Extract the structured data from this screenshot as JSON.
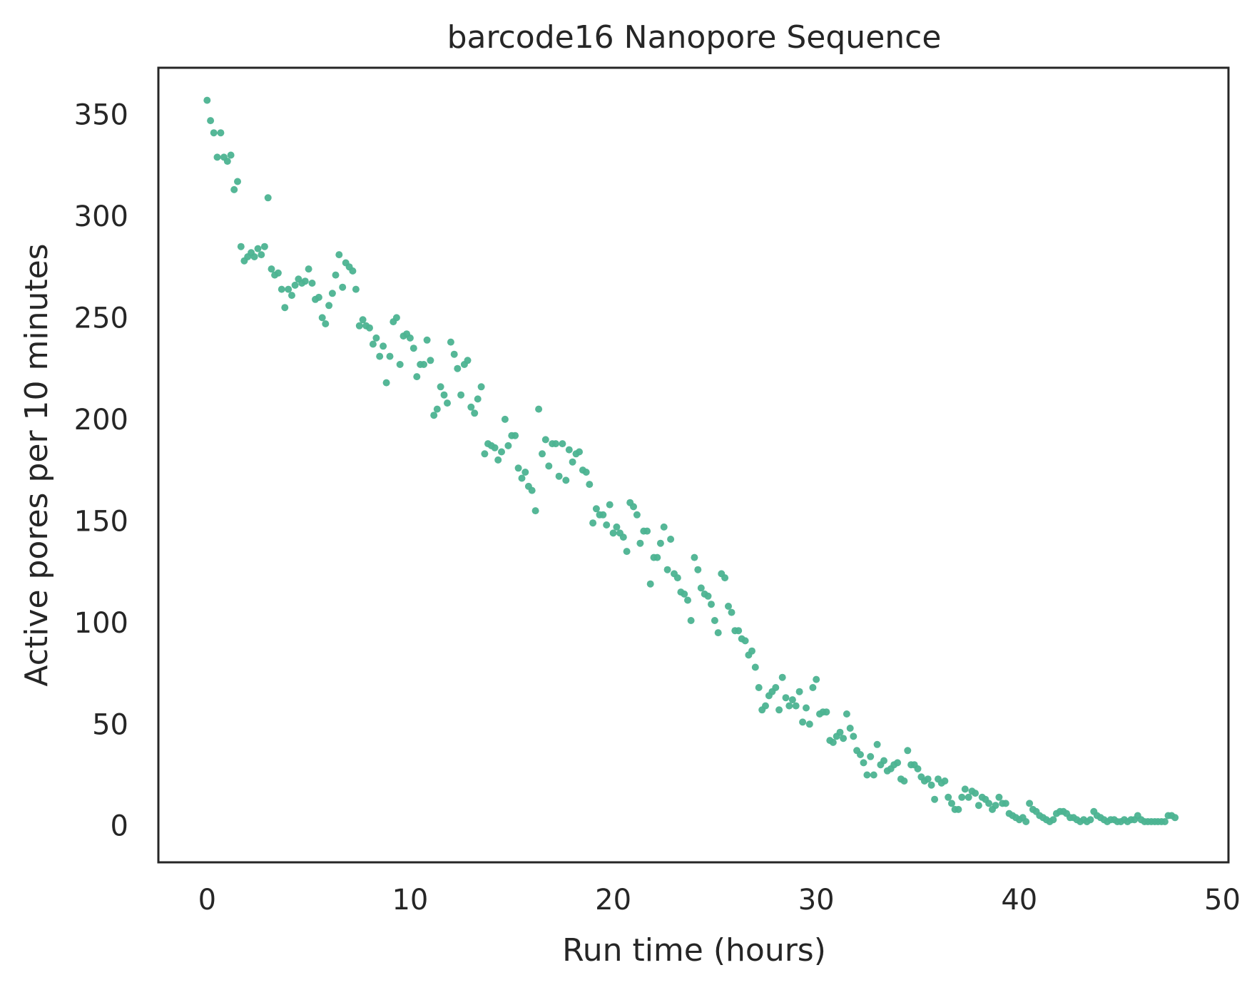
{
  "chart_data": {
    "type": "scatter",
    "title": "barcode16 Nanopore Sequence",
    "xlabel": "Run time (hours)",
    "ylabel": "Active pores per 10 minutes",
    "xlim": [
      -2.4,
      50.3
    ],
    "ylim": [
      -18,
      373
    ],
    "xticks": [
      0,
      10,
      20,
      30,
      40,
      50
    ],
    "yticks": [
      0,
      50,
      100,
      150,
      200,
      250,
      300,
      350
    ],
    "grid": false,
    "legend": "none",
    "marker_color": "#4cb391",
    "series": [
      {
        "x": [
          0,
          0.17,
          0.33,
          0.5,
          0.67,
          0.83,
          1,
          1.17,
          1.33,
          1.5,
          1.67,
          1.83,
          2,
          2.17,
          2.33,
          2.5,
          2.67,
          2.83,
          3,
          3.17,
          3.33,
          3.5,
          3.67,
          3.83,
          4,
          4.17,
          4.33,
          4.5,
          4.67,
          4.83,
          5,
          5.17,
          5.33,
          5.5,
          5.67,
          5.83,
          6,
          6.17,
          6.33,
          6.5,
          6.67,
          6.83,
          7,
          7.17,
          7.33,
          7.5,
          7.67,
          7.83,
          8,
          8.17,
          8.33,
          8.5,
          8.67,
          8.83,
          9,
          9.17,
          9.33,
          9.5,
          9.67,
          9.83,
          10,
          10.17,
          10.33,
          10.5,
          10.67,
          10.83,
          11,
          11.17,
          11.33,
          11.5,
          11.67,
          11.83,
          12,
          12.17,
          12.33,
          12.5,
          12.67,
          12.83,
          13,
          13.17,
          13.33,
          13.5,
          13.67,
          13.83,
          14,
          14.17,
          14.33,
          14.5,
          14.67,
          14.83,
          15,
          15.17,
          15.33,
          15.5,
          15.67,
          15.83,
          16,
          16.17,
          16.33,
          16.5,
          16.67,
          16.83,
          17,
          17.17,
          17.33,
          17.5,
          17.67,
          17.83,
          18,
          18.17,
          18.33,
          18.5,
          18.67,
          18.83,
          19,
          19.17,
          19.33,
          19.5,
          19.67,
          19.83,
          20,
          20.17,
          20.33,
          20.5,
          20.67,
          20.83,
          21,
          21.17,
          21.33,
          21.5,
          21.67,
          21.83,
          22,
          22.17,
          22.33,
          22.5,
          22.67,
          22.83,
          23,
          23.17,
          23.33,
          23.5,
          23.67,
          23.83,
          24,
          24.17,
          24.33,
          24.5,
          24.67,
          24.83,
          25,
          25.17,
          25.33,
          25.5,
          25.67,
          25.83,
          26,
          26.17,
          26.33,
          26.5,
          26.67,
          26.83,
          27,
          27.17,
          27.33,
          27.5,
          27.67,
          27.83,
          28,
          28.17,
          28.33,
          28.5,
          28.67,
          28.83,
          29,
          29.17,
          29.33,
          29.5,
          29.67,
          29.83,
          30,
          30.17,
          30.33,
          30.5,
          30.67,
          30.83,
          31,
          31.17,
          31.33,
          31.5,
          31.67,
          31.83,
          32,
          32.17,
          32.33,
          32.5,
          32.67,
          32.83,
          33,
          33.17,
          33.33,
          33.5,
          33.67,
          33.83,
          34,
          34.17,
          34.33,
          34.5,
          34.67,
          34.83,
          35,
          35.17,
          35.33,
          35.5,
          35.67,
          35.83,
          36,
          36.17,
          36.33,
          36.5,
          36.67,
          36.83,
          37,
          37.17,
          37.33,
          37.5,
          37.67,
          37.83,
          38,
          38.17,
          38.33,
          38.5,
          38.67,
          38.83,
          39,
          39.17,
          39.33,
          39.5,
          39.67,
          39.83,
          40,
          40.17,
          40.33,
          40.5,
          40.67,
          40.83,
          41,
          41.17,
          41.33,
          41.5,
          41.67,
          41.83,
          42,
          42.17,
          42.33,
          42.5,
          42.67,
          42.83,
          43,
          43.17,
          43.33,
          43.5,
          43.67,
          43.83,
          44,
          44.17,
          44.33,
          44.5,
          44.67,
          44.83,
          45,
          45.17,
          45.33,
          45.5,
          45.67,
          45.83,
          46,
          46.17,
          46.33,
          46.5,
          46.67,
          46.83,
          47,
          47.17,
          47.33,
          47.5,
          47.67
        ],
        "y": [
          357,
          347,
          341,
          329,
          341,
          329,
          327,
          330,
          313,
          317,
          285,
          278,
          280,
          282,
          280,
          284,
          281,
          285,
          309,
          274,
          271,
          272,
          264,
          255,
          264,
          261,
          266,
          269,
          267,
          268,
          274,
          267,
          259,
          260,
          250,
          247,
          256,
          262,
          271,
          281,
          265,
          277,
          275,
          273,
          264,
          246,
          249,
          246,
          245,
          237,
          240,
          231,
          236,
          218,
          231,
          248,
          250,
          227,
          241,
          242,
          240,
          235,
          221,
          227,
          227,
          239,
          229,
          202,
          205,
          216,
          212,
          208,
          238,
          232,
          225,
          212,
          227,
          229,
          206,
          203,
          210,
          216,
          183,
          188,
          187,
          186,
          180,
          184,
          200,
          187,
          192,
          192,
          176,
          171,
          174,
          167,
          165,
          155,
          205,
          183,
          190,
          177,
          188,
          188,
          172,
          188,
          170,
          185,
          179,
          183,
          184,
          175,
          174,
          168,
          149,
          156,
          153,
          153,
          148,
          158,
          144,
          147,
          144,
          142,
          135,
          159,
          157,
          153,
          139,
          145,
          145,
          119,
          132,
          132,
          139,
          147,
          126,
          141,
          124,
          122,
          115,
          114,
          111,
          101,
          132,
          126,
          117,
          114,
          113,
          109,
          101,
          95,
          124,
          122,
          108,
          105,
          96,
          96,
          92,
          91,
          84,
          86,
          78,
          68,
          57,
          59,
          64,
          66,
          68,
          57,
          73,
          63,
          59,
          62,
          59,
          66,
          51,
          58,
          50,
          68,
          72,
          55,
          56,
          56,
          42,
          41,
          44,
          46,
          43,
          55,
          48,
          44,
          37,
          35,
          31,
          25,
          34,
          25,
          40,
          30,
          32,
          27,
          28,
          30,
          31,
          23,
          22,
          37,
          30,
          30,
          28,
          24,
          22,
          23,
          20,
          13,
          23,
          21,
          22,
          14,
          11,
          8,
          8,
          14,
          18,
          14,
          17,
          16,
          10,
          14,
          13,
          11,
          8,
          10,
          14,
          11,
          11,
          6,
          5,
          4,
          3,
          4,
          2,
          11,
          8,
          7,
          5,
          4,
          3,
          2,
          3,
          6,
          7,
          7,
          6,
          4,
          4,
          3,
          2,
          3,
          2,
          3,
          7,
          5,
          4,
          3,
          2,
          3,
          3,
          2,
          2,
          3,
          2,
          3,
          3,
          5,
          3,
          2,
          2,
          2,
          2,
          2,
          2,
          2,
          5,
          5,
          4
        ]
      }
    ]
  }
}
